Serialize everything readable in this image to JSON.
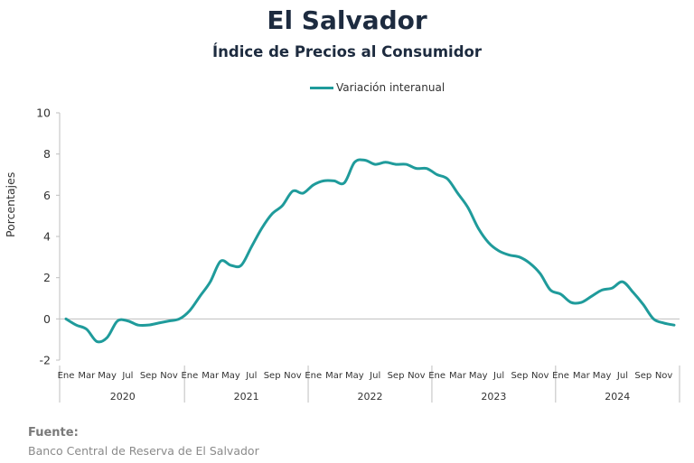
{
  "chart_data": {
    "type": "line",
    "title": "El Salvador",
    "subtitle": "Índice de Precios al Consumidor",
    "ylabel": "Porcentajes",
    "ylim": [
      -2,
      10
    ],
    "yticks": [
      -2,
      0,
      2,
      4,
      6,
      8,
      10
    ],
    "grid": false,
    "legend_position": "top-center",
    "month_tick_labels": [
      "Ene",
      "Mar",
      "May",
      "Jul",
      "Sep",
      "Nov"
    ],
    "years": [
      "2020",
      "2021",
      "2022",
      "2023",
      "2024"
    ],
    "series": [
      {
        "name": "Variación interanual",
        "color": "#1f9b9b",
        "x": [
          "2020-01",
          "2020-02",
          "2020-03",
          "2020-04",
          "2020-05",
          "2020-06",
          "2020-07",
          "2020-08",
          "2020-09",
          "2020-10",
          "2020-11",
          "2020-12",
          "2021-01",
          "2021-02",
          "2021-03",
          "2021-04",
          "2021-05",
          "2021-06",
          "2021-07",
          "2021-08",
          "2021-09",
          "2021-10",
          "2021-11",
          "2021-12",
          "2022-01",
          "2022-02",
          "2022-03",
          "2022-04",
          "2022-05",
          "2022-06",
          "2022-07",
          "2022-08",
          "2022-09",
          "2022-10",
          "2022-11",
          "2022-12",
          "2023-01",
          "2023-02",
          "2023-03",
          "2023-04",
          "2023-05",
          "2023-06",
          "2023-07",
          "2023-08",
          "2023-09",
          "2023-10",
          "2023-11",
          "2023-12",
          "2024-01",
          "2024-02",
          "2024-03",
          "2024-04",
          "2024-05",
          "2024-06",
          "2024-07",
          "2024-08",
          "2024-09",
          "2024-10",
          "2024-11",
          "2024-12"
        ],
        "values": [
          0.0,
          -0.3,
          -0.5,
          -1.1,
          -0.9,
          -0.1,
          -0.1,
          -0.3,
          -0.3,
          -0.2,
          -0.1,
          0.0,
          0.4,
          1.1,
          1.8,
          2.8,
          2.6,
          2.6,
          3.5,
          4.4,
          5.1,
          5.5,
          6.2,
          6.1,
          6.5,
          6.7,
          6.7,
          6.6,
          7.6,
          7.7,
          7.5,
          7.6,
          7.5,
          7.5,
          7.3,
          7.3,
          7.0,
          6.8,
          6.1,
          5.4,
          4.4,
          3.7,
          3.3,
          3.1,
          3.0,
          2.7,
          2.2,
          1.4,
          1.2,
          0.8,
          0.8,
          1.1,
          1.4,
          1.5,
          1.8,
          1.3,
          0.7,
          0.0,
          -0.2,
          -0.3
        ]
      }
    ]
  },
  "source": {
    "heading": "Fuente:",
    "text": "Banco Central de Reserva de El Salvador"
  }
}
